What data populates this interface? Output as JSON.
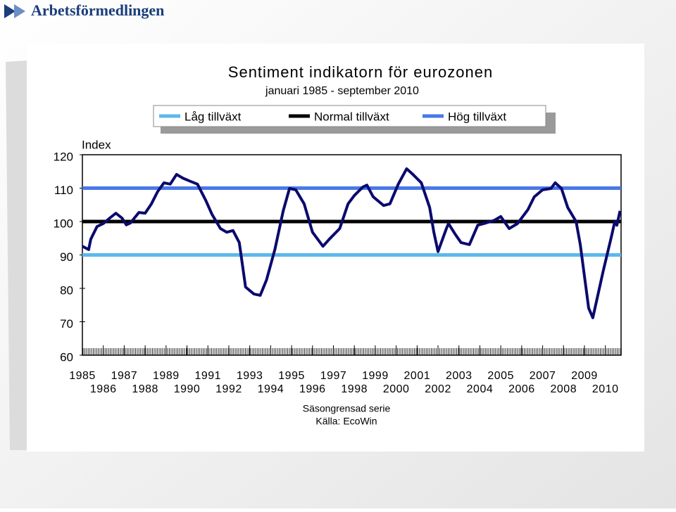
{
  "brand": "Arbetsförmedlingen",
  "chart_data": {
    "type": "line",
    "title": "Sentiment indikatorn för eurozonen",
    "subtitle": "januari 1985 - september 2010",
    "y_label": "Index",
    "notes": [
      "Säsongrensad serie",
      "Källa: EcoWin"
    ],
    "reference_lines": [
      {
        "name": "Låg tillväxt",
        "value": 90,
        "color": "#5bb8ec"
      },
      {
        "name": "Normal tillväxt",
        "value": 100,
        "color": "#000000"
      },
      {
        "name": "Hög tillväxt",
        "value": 110,
        "color": "#4a78e8"
      }
    ],
    "series": [
      {
        "color": "#0a0a6e",
        "x": [
          1985.0,
          1985.3,
          1985.4,
          1985.7,
          1986.0,
          1986.3,
          1986.6,
          1986.9,
          1987.1,
          1987.3,
          1987.7,
          1988.0,
          1988.3,
          1988.6,
          1988.9,
          1989.2,
          1989.5,
          1989.8,
          1990.1,
          1990.5,
          1990.9,
          1991.2,
          1991.6,
          1991.9,
          1992.2,
          1992.5,
          1992.8,
          1993.2,
          1993.5,
          1993.8,
          1994.2,
          1994.6,
          1994.9,
          1995.2,
          1995.6,
          1996.0,
          1996.5,
          1996.8,
          1997.3,
          1997.7,
          1998.0,
          1998.4,
          1998.6,
          1998.9,
          1999.4,
          1999.7,
          2000.1,
          2000.5,
          2000.8,
          2001.2,
          2001.6,
          2001.8,
          2002.0,
          2002.4,
          2002.5,
          2002.8,
          2003.1,
          2003.5,
          2003.9,
          2004.2,
          2004.7,
          2005.0,
          2005.4,
          2005.8,
          2006.3,
          2006.6,
          2007.0,
          2007.4,
          2007.6,
          2007.9,
          2008.2,
          2008.6,
          2008.8,
          2009.2,
          2009.4,
          2009.9,
          2010.3,
          2010.45,
          2010.55,
          2010.7
        ],
        "values": [
          92.6,
          91.6,
          94.7,
          98.5,
          99.4,
          101,
          102.5,
          101,
          99,
          99.6,
          102.7,
          102.5,
          105.3,
          109,
          111.6,
          111.2,
          114.1,
          113,
          112.2,
          111.2,
          106.3,
          102.1,
          97.9,
          96.8,
          97.3,
          93.7,
          80.4,
          78.3,
          77.9,
          82.5,
          91.6,
          103.2,
          109.9,
          109.5,
          105.3,
          96.8,
          92.6,
          94.7,
          97.9,
          105.3,
          107.8,
          110.3,
          110.9,
          107.4,
          104.8,
          105.3,
          111.2,
          115.8,
          114.1,
          111.6,
          104.2,
          96.8,
          91,
          97.9,
          99.4,
          96.4,
          93.7,
          93.1,
          98.9,
          99.4,
          100.4,
          101.5,
          97.9,
          99.4,
          103.6,
          107.4,
          109.5,
          109.9,
          111.6,
          109.9,
          104.2,
          100,
          93.1,
          74.1,
          71.2,
          85.3,
          95.8,
          100,
          98.9,
          103.2
        ]
      }
    ],
    "xlim": [
      1985,
      2010.75
    ],
    "xticks": [
      1985,
      1986,
      1987,
      1988,
      1989,
      1990,
      1991,
      1992,
      1993,
      1994,
      1995,
      1996,
      1997,
      1998,
      1999,
      2000,
      2001,
      2002,
      2003,
      2004,
      2005,
      2006,
      2007,
      2008,
      2009,
      2010
    ],
    "ylim": [
      60,
      120
    ],
    "yticks": [
      60,
      70,
      80,
      90,
      100,
      110,
      120
    ]
  }
}
